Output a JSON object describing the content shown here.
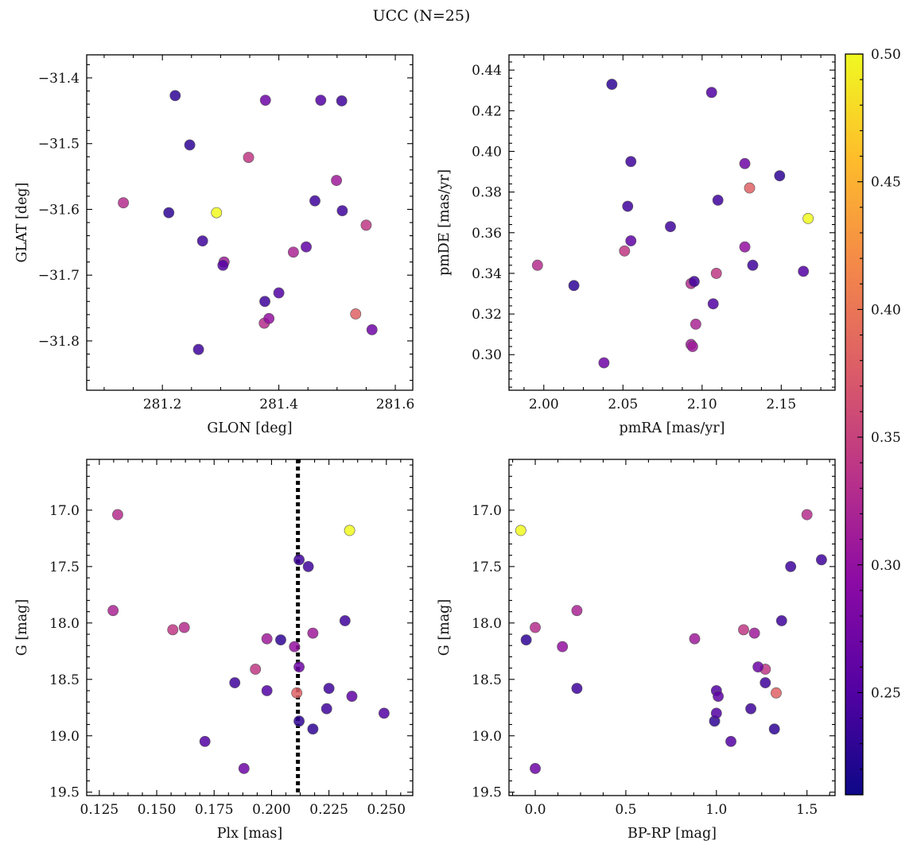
{
  "title": "UCC (N=25)",
  "chart_data": [
    {
      "type": "scatter",
      "panel": "top-left",
      "xlabel": "GLON [deg]",
      "ylabel": "GLAT [deg]",
      "xlim": [
        281.07,
        281.63
      ],
      "ylim": [
        -31.875,
        -31.365
      ],
      "x_ticks": [
        281.2,
        281.4,
        281.6
      ],
      "x_tick_labels": [
        "281.2",
        "281.4",
        "281.6"
      ],
      "y_ticks": [
        -31.4,
        -31.5,
        -31.6,
        -31.7,
        -31.8
      ],
      "y_tick_labels": [
        "−31.4",
        "−31.5",
        "−31.6",
        "−31.7",
        "−31.8"
      ]
    },
    {
      "type": "scatter",
      "panel": "top-right",
      "xlabel": "pmRA [mas/yr]",
      "ylabel": "pmDE [mas/yr]",
      "xlim": [
        1.978,
        2.184
      ],
      "ylim": [
        0.2825,
        0.4475
      ],
      "x_ticks": [
        2.0,
        2.05,
        2.1,
        2.15
      ],
      "x_tick_labels": [
        "2.00",
        "2.05",
        "2.10",
        "2.15"
      ],
      "y_ticks": [
        0.3,
        0.32,
        0.34,
        0.36,
        0.38,
        0.4,
        0.42,
        0.44
      ],
      "y_tick_labels": [
        "0.30",
        "0.32",
        "0.34",
        "0.36",
        "0.38",
        "0.40",
        "0.42",
        "0.44"
      ]
    },
    {
      "type": "scatter",
      "panel": "bottom-left",
      "xlabel": "Plx [mas]",
      "ylabel": "G [mag]",
      "xlim": [
        0.1195,
        0.2615
      ],
      "ylim": [
        19.53,
        16.55
      ],
      "y_inverted": true,
      "vline": {
        "x": 0.2115,
        "style": "dotted",
        "color": "#000000"
      },
      "x_ticks": [
        0.125,
        0.15,
        0.175,
        0.2,
        0.225,
        0.25
      ],
      "x_tick_labels": [
        "0.125",
        "0.150",
        "0.175",
        "0.200",
        "0.225",
        "0.250"
      ],
      "y_ticks": [
        17.0,
        17.5,
        18.0,
        18.5,
        19.0,
        19.5
      ],
      "y_tick_labels": [
        "17.0",
        "17.5",
        "18.0",
        "18.5",
        "19.0",
        "19.5"
      ]
    },
    {
      "type": "scatter",
      "panel": "bottom-right",
      "xlabel": "BP-RP [mag]",
      "ylabel": "G [mag]",
      "xlim": [
        -0.145,
        1.655
      ],
      "ylim": [
        19.53,
        16.55
      ],
      "y_inverted": true,
      "x_ticks": [
        0.0,
        0.5,
        1.0,
        1.5
      ],
      "x_tick_labels": [
        "0.0",
        "0.5",
        "1.0",
        "1.5"
      ],
      "y_ticks": [
        17.0,
        17.5,
        18.0,
        18.5,
        19.0,
        19.5
      ],
      "y_tick_labels": [
        "17.0",
        "17.5",
        "18.0",
        "18.5",
        "19.0",
        "19.5"
      ]
    }
  ],
  "colorbar": {
    "colormap": "plasma",
    "vmin": 0.21,
    "vmax": 0.5,
    "ticks": [
      0.25,
      0.3,
      0.35,
      0.4,
      0.45,
      0.5
    ],
    "tick_labels": [
      "0.25",
      "0.30",
      "0.35",
      "0.40",
      "0.45",
      "0.50"
    ]
  },
  "stars": [
    {
      "glon": 281.222,
      "glat": -31.427,
      "pmra": 2.043,
      "pmde": 0.433,
      "plx": 0.218,
      "g": 18.94,
      "bprp": 1.32,
      "c": 0.23
    },
    {
      "glon": 281.247,
      "glat": -31.502,
      "pmra": 2.149,
      "pmde": 0.388,
      "plx": 0.204,
      "g": 18.15,
      "bprp": -0.05,
      "c": 0.23
    },
    {
      "glon": 281.377,
      "glat": -31.434,
      "pmra": 2.127,
      "pmde": 0.394,
      "plx": 0.188,
      "g": 19.29,
      "bprp": 0.0,
      "c": 0.27
    },
    {
      "glon": 281.472,
      "glat": -31.434,
      "pmra": 2.106,
      "pmde": 0.429,
      "plx": 0.171,
      "g": 19.05,
      "bprp": 1.08,
      "c": 0.25
    },
    {
      "glon": 281.508,
      "glat": -31.435,
      "pmra": 2.055,
      "pmde": 0.395,
      "plx": 0.184,
      "g": 18.53,
      "bprp": 1.27,
      "c": 0.24
    },
    {
      "glon": 281.348,
      "glat": -31.521,
      "pmra": 2.109,
      "pmde": 0.34,
      "plx": 0.193,
      "g": 18.41,
      "bprp": 1.27,
      "c": 0.34
    },
    {
      "glon": 281.133,
      "glat": -31.59,
      "pmra": 1.996,
      "pmde": 0.344,
      "plx": 0.133,
      "g": 17.04,
      "bprp": 1.5,
      "c": 0.33
    },
    {
      "glon": 281.211,
      "glat": -31.605,
      "pmra": 2.019,
      "pmde": 0.334,
      "plx": 0.212,
      "g": 18.87,
      "bprp": 0.99,
      "c": 0.23
    },
    {
      "glon": 281.293,
      "glat": -31.605,
      "pmra": 2.167,
      "pmde": 0.367,
      "plx": 0.234,
      "g": 17.18,
      "bprp": -0.08,
      "c": 0.5
    },
    {
      "glon": 281.499,
      "glat": -31.556,
      "pmra": 2.093,
      "pmde": 0.305,
      "plx": 0.198,
      "g": 18.14,
      "bprp": 0.88,
      "c": 0.31
    },
    {
      "glon": 281.462,
      "glat": -31.587,
      "pmra": 2.11,
      "pmde": 0.376,
      "plx": 0.212,
      "g": 17.44,
      "bprp": 1.58,
      "c": 0.24
    },
    {
      "glon": 281.509,
      "glat": -31.602,
      "pmra": 2.08,
      "pmde": 0.363,
      "plx": 0.216,
      "g": 17.5,
      "bprp": 1.41,
      "c": 0.24
    },
    {
      "glon": 281.55,
      "glat": -31.624,
      "pmra": 2.051,
      "pmde": 0.351,
      "plx": 0.157,
      "g": 18.06,
      "bprp": 1.15,
      "c": 0.34
    },
    {
      "glon": 281.269,
      "glat": -31.648,
      "pmra": 2.053,
      "pmde": 0.373,
      "plx": 0.232,
      "g": 17.98,
      "bprp": 1.36,
      "c": 0.24
    },
    {
      "glon": 281.306,
      "glat": -31.68,
      "pmra": 2.094,
      "pmde": 0.304,
      "plx": 0.218,
      "g": 18.09,
      "bprp": 1.21,
      "c": 0.31
    },
    {
      "glon": 281.304,
      "glat": -31.685,
      "pmra": 2.107,
      "pmde": 0.325,
      "plx": 0.198,
      "g": 18.6,
      "bprp": 1.0,
      "c": 0.25
    },
    {
      "glon": 281.425,
      "glat": -31.665,
      "pmra": 2.096,
      "pmde": 0.315,
      "plx": 0.131,
      "g": 17.89,
      "bprp": 0.23,
      "c": 0.32
    },
    {
      "glon": 281.447,
      "glat": -31.657,
      "pmra": 2.055,
      "pmde": 0.356,
      "plx": 0.235,
      "g": 18.65,
      "bprp": 1.01,
      "c": 0.26
    },
    {
      "glon": 281.376,
      "glat": -31.74,
      "pmra": 2.132,
      "pmde": 0.344,
      "plx": 0.225,
      "g": 18.58,
      "bprp": 0.23,
      "c": 0.24
    },
    {
      "glon": 281.4,
      "glat": -31.727,
      "pmra": 2.164,
      "pmde": 0.341,
      "plx": 0.249,
      "g": 18.8,
      "bprp": 1.0,
      "c": 0.25
    },
    {
      "glon": 281.375,
      "glat": -31.773,
      "pmra": 2.093,
      "pmde": 0.335,
      "plx": 0.162,
      "g": 18.04,
      "bprp": 0.0,
      "c": 0.33
    },
    {
      "glon": 281.383,
      "glat": -31.766,
      "pmra": 2.127,
      "pmde": 0.353,
      "plx": 0.21,
      "g": 18.21,
      "bprp": 0.15,
      "c": 0.3
    },
    {
      "glon": 281.532,
      "glat": -31.759,
      "pmra": 2.13,
      "pmde": 0.382,
      "plx": 0.211,
      "g": 18.62,
      "bprp": 1.33,
      "c": 0.38
    },
    {
      "glon": 281.56,
      "glat": -31.783,
      "pmra": 2.038,
      "pmde": 0.296,
      "plx": 0.212,
      "g": 18.39,
      "bprp": 1.23,
      "c": 0.27
    },
    {
      "glon": 281.262,
      "glat": -31.813,
      "pmra": 2.095,
      "pmde": 0.336,
      "plx": 0.224,
      "g": 18.76,
      "bprp": 1.19,
      "c": 0.24
    }
  ]
}
